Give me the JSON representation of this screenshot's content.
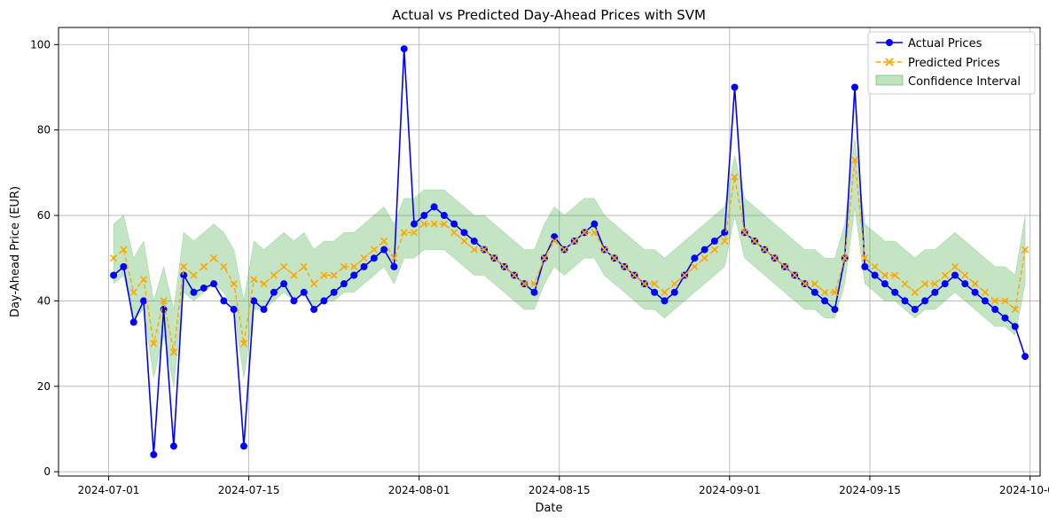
{
  "chart_data": {
    "type": "line",
    "title": "Actual vs Predicted Day-Ahead Prices with SVM",
    "xlabel": "Date",
    "ylabel": "Day-Ahead Price (EUR)",
    "x_ticks": [
      "2024-07-01",
      "2024-07-15",
      "2024-08-01",
      "2024-08-15",
      "2024-09-01",
      "2024-09-15",
      "2024-10-01"
    ],
    "y_ticks": [
      0,
      20,
      40,
      60,
      80,
      100
    ],
    "xlim": [
      "2024-06-26",
      "2024-10-02"
    ],
    "ylim": [
      -1,
      104
    ],
    "grid": true,
    "legend_position": "top-right",
    "colors": {
      "actual": "#0000ff",
      "predicted": "#ffa500",
      "confidence": "#2ca02c"
    },
    "series": [
      {
        "name": "Actual Prices",
        "marker": "circle",
        "line": "solid",
        "x": [
          "2024-07-01",
          "2024-07-02",
          "2024-07-03",
          "2024-07-04",
          "2024-07-05",
          "2024-07-06",
          "2024-07-07",
          "2024-07-08",
          "2024-07-09",
          "2024-07-10",
          "2024-07-11",
          "2024-07-12",
          "2024-07-13",
          "2024-07-14",
          "2024-07-15",
          "2024-07-16",
          "2024-07-17",
          "2024-07-18",
          "2024-07-19",
          "2024-07-20",
          "2024-07-21",
          "2024-07-22",
          "2024-07-23",
          "2024-07-24",
          "2024-07-25",
          "2024-07-26",
          "2024-07-27",
          "2024-07-28",
          "2024-07-29",
          "2024-07-30",
          "2024-07-31",
          "2024-08-01",
          "2024-08-02",
          "2024-08-03",
          "2024-08-04",
          "2024-08-05",
          "2024-08-06",
          "2024-08-07",
          "2024-08-08",
          "2024-08-09",
          "2024-08-10",
          "2024-08-11",
          "2024-08-12",
          "2024-08-13",
          "2024-08-14",
          "2024-08-15",
          "2024-08-16",
          "2024-08-17",
          "2024-08-18",
          "2024-08-19",
          "2024-08-20",
          "2024-08-21",
          "2024-08-22",
          "2024-08-23",
          "2024-08-24",
          "2024-08-25",
          "2024-08-26",
          "2024-08-27",
          "2024-08-28",
          "2024-08-29",
          "2024-08-30",
          "2024-08-31",
          "2024-09-01",
          "2024-09-02",
          "2024-09-03",
          "2024-09-04",
          "2024-09-05",
          "2024-09-06",
          "2024-09-07",
          "2024-09-08",
          "2024-09-09",
          "2024-09-10",
          "2024-09-11",
          "2024-09-12",
          "2024-09-13",
          "2024-09-14",
          "2024-09-15",
          "2024-09-16",
          "2024-09-17",
          "2024-09-18",
          "2024-09-19",
          "2024-09-20",
          "2024-09-21",
          "2024-09-22",
          "2024-09-23",
          "2024-09-24",
          "2024-09-25",
          "2024-09-26",
          "2024-09-27",
          "2024-09-28",
          "2024-09-29",
          "2024-09-30"
        ],
        "values": [
          46,
          48,
          35,
          40,
          4,
          38,
          6,
          46,
          42,
          43,
          44,
          40,
          38,
          6,
          40,
          38,
          42,
          44,
          40,
          42,
          38,
          40,
          42,
          44,
          46,
          48,
          50,
          52,
          48,
          99,
          58,
          60,
          62,
          60,
          58,
          56,
          54,
          52,
          50,
          48,
          46,
          44,
          42,
          50,
          55,
          52,
          54,
          56,
          58,
          52,
          50,
          48,
          46,
          44,
          42,
          40,
          42,
          46,
          50,
          52,
          54,
          56,
          90,
          56,
          54,
          52,
          50,
          48,
          46,
          44,
          42,
          40,
          38,
          50,
          90,
          48,
          46,
          44,
          42,
          40,
          38,
          40,
          42,
          44,
          46,
          44,
          42,
          40,
          38,
          36,
          34,
          27
        ]
      },
      {
        "name": "Predicted Prices",
        "marker": "x",
        "line": "dashed",
        "x": [
          "2024-07-01",
          "2024-07-02",
          "2024-07-03",
          "2024-07-04",
          "2024-07-05",
          "2024-07-06",
          "2024-07-07",
          "2024-07-08",
          "2024-07-09",
          "2024-07-10",
          "2024-07-11",
          "2024-07-12",
          "2024-07-13",
          "2024-07-14",
          "2024-07-15",
          "2024-07-16",
          "2024-07-17",
          "2024-07-18",
          "2024-07-19",
          "2024-07-20",
          "2024-07-21",
          "2024-07-22",
          "2024-07-23",
          "2024-07-24",
          "2024-07-25",
          "2024-07-26",
          "2024-07-27",
          "2024-07-28",
          "2024-07-29",
          "2024-07-30",
          "2024-07-31",
          "2024-08-01",
          "2024-08-02",
          "2024-08-03",
          "2024-08-04",
          "2024-08-05",
          "2024-08-06",
          "2024-08-07",
          "2024-08-08",
          "2024-08-09",
          "2024-08-10",
          "2024-08-11",
          "2024-08-12",
          "2024-08-13",
          "2024-08-14",
          "2024-08-15",
          "2024-08-16",
          "2024-08-17",
          "2024-08-18",
          "2024-08-19",
          "2024-08-20",
          "2024-08-21",
          "2024-08-22",
          "2024-08-23",
          "2024-08-24",
          "2024-08-25",
          "2024-08-26",
          "2024-08-27",
          "2024-08-28",
          "2024-08-29",
          "2024-08-30",
          "2024-08-31",
          "2024-09-01",
          "2024-09-02",
          "2024-09-03",
          "2024-09-04",
          "2024-09-05",
          "2024-09-06",
          "2024-09-07",
          "2024-09-08",
          "2024-09-09",
          "2024-09-10",
          "2024-09-11",
          "2024-09-12",
          "2024-09-13",
          "2024-09-14",
          "2024-09-15",
          "2024-09-16",
          "2024-09-17",
          "2024-09-18",
          "2024-09-19",
          "2024-09-20",
          "2024-09-21",
          "2024-09-22",
          "2024-09-23",
          "2024-09-24",
          "2024-09-25",
          "2024-09-26",
          "2024-09-27",
          "2024-09-28",
          "2024-09-29",
          "2024-09-30"
        ],
        "values": [
          50,
          52,
          42,
          45,
          30,
          40,
          28,
          48,
          46,
          48,
          50,
          48,
          44,
          30,
          45,
          44,
          46,
          48,
          46,
          48,
          44,
          46,
          46,
          48,
          48,
          50,
          52,
          54,
          50,
          56,
          56,
          58,
          58,
          58,
          56,
          54,
          52,
          52,
          50,
          48,
          46,
          44,
          44,
          50,
          54,
          52,
          54,
          56,
          56,
          52,
          50,
          48,
          46,
          44,
          44,
          42,
          44,
          46,
          48,
          50,
          52,
          54,
          69,
          56,
          54,
          52,
          50,
          48,
          46,
          44,
          44,
          42,
          42,
          50,
          73,
          50,
          48,
          46,
          46,
          44,
          42,
          44,
          44,
          46,
          48,
          46,
          44,
          42,
          40,
          40,
          38,
          52
        ]
      }
    ],
    "confidence_interval": {
      "name": "Confidence Interval",
      "lower": [
        44,
        46,
        36,
        38,
        22,
        32,
        20,
        42,
        40,
        42,
        44,
        42,
        38,
        22,
        38,
        38,
        40,
        42,
        40,
        42,
        38,
        40,
        40,
        42,
        42,
        44,
        46,
        48,
        44,
        50,
        50,
        52,
        52,
        52,
        50,
        48,
        46,
        46,
        44,
        42,
        40,
        38,
        38,
        44,
        48,
        46,
        48,
        50,
        50,
        46,
        44,
        42,
        40,
        38,
        38,
        36,
        38,
        40,
        42,
        44,
        46,
        48,
        60,
        50,
        48,
        46,
        44,
        42,
        40,
        38,
        38,
        36,
        36,
        44,
        62,
        44,
        42,
        40,
        40,
        38,
        36,
        38,
        38,
        40,
        42,
        40,
        38,
        36,
        34,
        34,
        32,
        44
      ],
      "upper": [
        58,
        60,
        50,
        54,
        40,
        48,
        38,
        56,
        54,
        56,
        58,
        56,
        52,
        40,
        54,
        52,
        54,
        56,
        54,
        56,
        52,
        54,
        54,
        56,
        56,
        58,
        60,
        62,
        58,
        64,
        64,
        66,
        66,
        66,
        64,
        62,
        60,
        60,
        58,
        56,
        54,
        52,
        52,
        58,
        62,
        60,
        62,
        64,
        64,
        60,
        58,
        56,
        54,
        52,
        52,
        50,
        52,
        54,
        56,
        58,
        60,
        62,
        74,
        64,
        62,
        60,
        58,
        56,
        54,
        52,
        52,
        50,
        50,
        58,
        78,
        58,
        56,
        54,
        54,
        52,
        50,
        52,
        52,
        54,
        56,
        54,
        52,
        50,
        48,
        48,
        46,
        60
      ]
    }
  }
}
